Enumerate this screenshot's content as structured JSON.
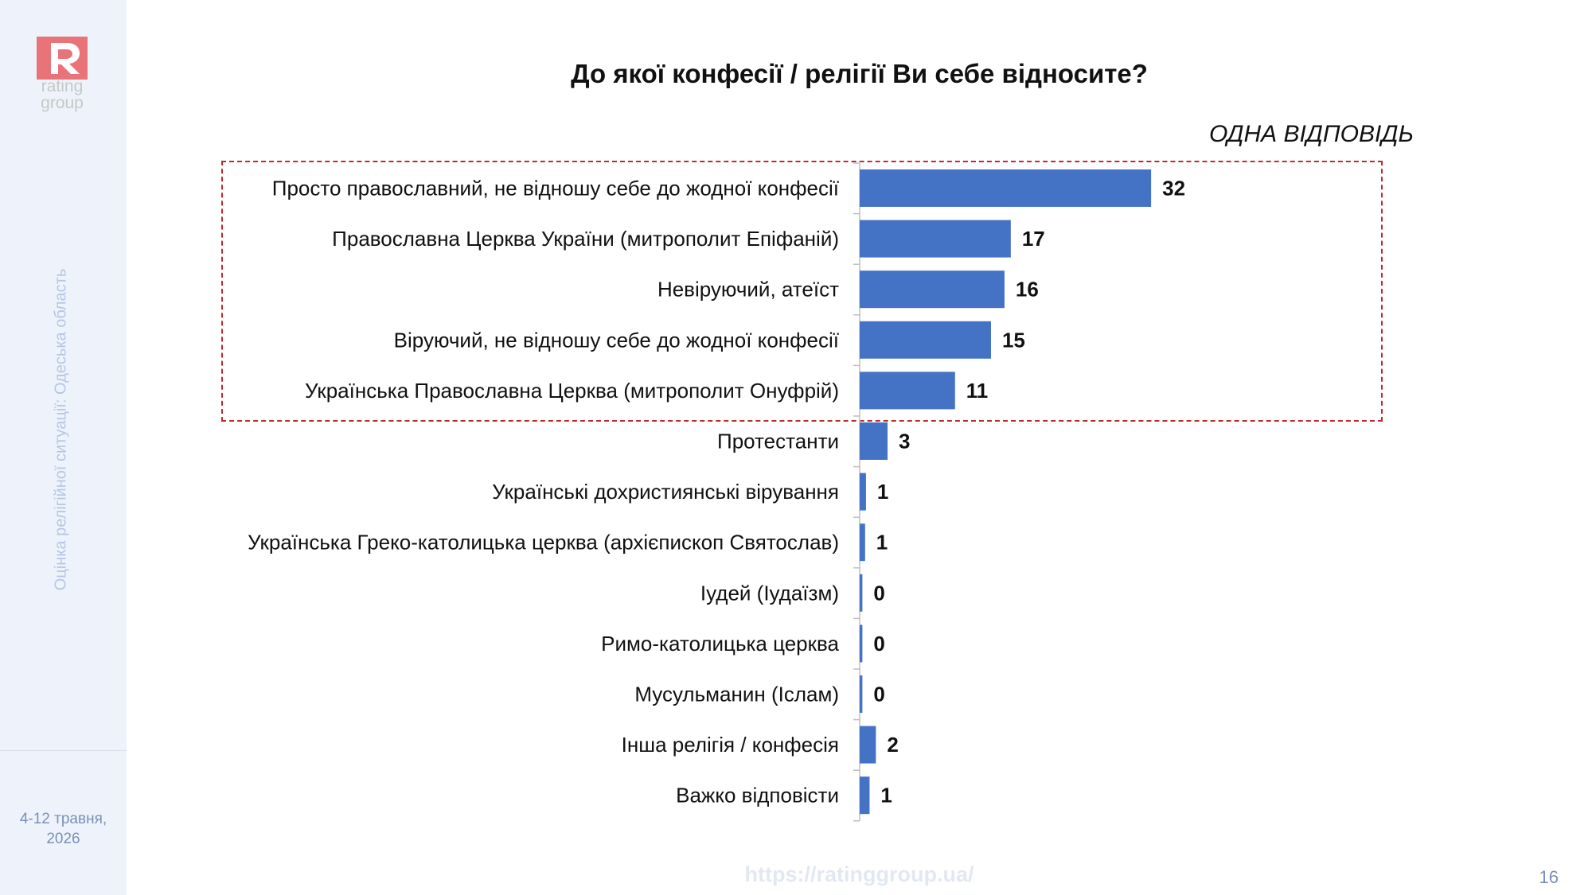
{
  "sidebar": {
    "logo_text": "rating\ngroup",
    "vertical_text": "Оцінка релігійної ситуації: Одеська область",
    "date": "4-12 травня,\n2026"
  },
  "header": {
    "title": "До якої конфесії / релігії Ви себе відносите?",
    "subtitle": "ОДНА ВІДПОВІДЬ"
  },
  "footer": {
    "url": "https://ratinggroup.ua/",
    "page": "16"
  },
  "colors": {
    "bar": "#4472c4",
    "highlight": "#c0282d",
    "brand": "#e8747a"
  },
  "chart_data": {
    "type": "bar",
    "orientation": "horizontal",
    "categories": [
      "Просто православний, не відношу себе до жодної конфесії",
      "Православна Церква України (митрополит Епіфаній)",
      "Невіруючий, атеїст",
      "Віруючий, не відношу себе до жодної конфесії",
      "Українська Православна Церква (митрополит Онуфрій)",
      "Протестанти",
      "Українські дохристиянські вірування",
      "Українська Греко-католицька церква (архієпископ Святослав)",
      "Іудей (Іудаїзм)",
      "Римо-католицька церква",
      "Мусульманин (Іслам)",
      "Інша релігія / конфесія",
      "Важко відповісти"
    ],
    "values": [
      32,
      17,
      16,
      15,
      11,
      3,
      1,
      1,
      0,
      0,
      0,
      2,
      1
    ],
    "bar_values": [
      32.4,
      16.8,
      16.1,
      14.6,
      10.6,
      3.1,
      0.7,
      0.6,
      0.3,
      0.3,
      0.3,
      1.8,
      1.1
    ],
    "highlighted_count": 5
  }
}
